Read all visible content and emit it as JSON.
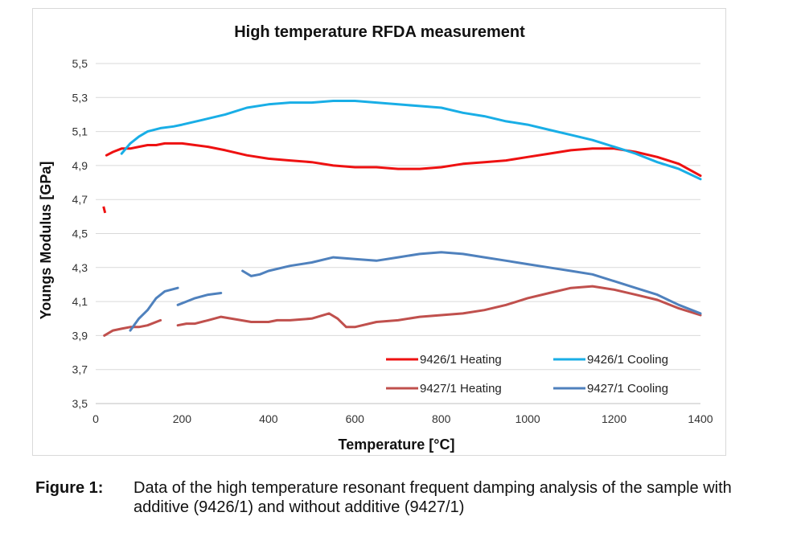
{
  "figure": {
    "label": "Figure 1:",
    "caption": "Data of the high temperature resonant frequent damping analysis of the sample with additive (9426/1) and without additive (9427/1)"
  },
  "chart_data": {
    "type": "line",
    "title": "High temperature RFDA measurement",
    "xlabel": "Temperature [°C]",
    "ylabel": "Youngs Modulus [GPa]",
    "xlim": [
      0,
      1400
    ],
    "ylim": [
      3.5,
      5.5
    ],
    "xticks": [
      0,
      200,
      400,
      600,
      800,
      1000,
      1200,
      1400
    ],
    "xtick_labels": [
      "0",
      "200",
      "400",
      "600",
      "800",
      "1000",
      "1200",
      "1400"
    ],
    "yticks": [
      3.5,
      3.7,
      3.9,
      4.1,
      4.3,
      4.5,
      4.7,
      4.9,
      5.1,
      5.3,
      5.5
    ],
    "ytick_labels": [
      "3,5",
      "3,7",
      "3,9",
      "4,1",
      "4,3",
      "4,5",
      "4,7",
      "4,9",
      "5,1",
      "5,3",
      "5,5"
    ],
    "grid": "horizontal",
    "legend_position": "bottom-right",
    "series": [
      {
        "name": "9426/1 Heating",
        "color": "#ee1111",
        "x": [
          20,
          22,
          25,
          40,
          60,
          80,
          100,
          120,
          140,
          160,
          180,
          200,
          230,
          260,
          300,
          350,
          400,
          450,
          500,
          550,
          600,
          650,
          700,
          750,
          800,
          850,
          900,
          950,
          1000,
          1050,
          1100,
          1150,
          1200,
          1250,
          1300,
          1350,
          1400
        ],
        "y": [
          4.64,
          null,
          4.96,
          4.98,
          5.0,
          5.0,
          5.01,
          5.02,
          5.02,
          5.03,
          5.03,
          5.03,
          5.02,
          5.01,
          4.99,
          4.96,
          4.94,
          4.93,
          4.92,
          4.9,
          4.89,
          4.89,
          4.88,
          4.88,
          4.89,
          4.91,
          4.92,
          4.93,
          4.95,
          4.97,
          4.99,
          5.0,
          5.0,
          4.98,
          4.95,
          4.91,
          4.84
        ]
      },
      {
        "name": "9426/1 Cooling",
        "color": "#19aee6",
        "x": [
          60,
          80,
          100,
          120,
          150,
          180,
          200,
          250,
          300,
          350,
          400,
          450,
          500,
          550,
          600,
          650,
          700,
          750,
          800,
          850,
          900,
          950,
          1000,
          1050,
          1100,
          1150,
          1200,
          1250,
          1300,
          1350,
          1400
        ],
        "y": [
          4.97,
          5.03,
          5.07,
          5.1,
          5.12,
          5.13,
          5.14,
          5.17,
          5.2,
          5.24,
          5.26,
          5.27,
          5.27,
          5.28,
          5.28,
          5.27,
          5.26,
          5.25,
          5.24,
          5.21,
          5.19,
          5.16,
          5.14,
          5.11,
          5.08,
          5.05,
          5.01,
          4.97,
          4.92,
          4.88,
          4.82
        ]
      },
      {
        "name": "9427/1 Heating",
        "color": "#c0504d",
        "x": [
          20,
          40,
          60,
          80,
          100,
          120,
          150,
          160,
          190,
          210,
          230,
          260,
          290,
          360,
          380,
          400,
          420,
          450,
          500,
          540,
          560,
          580,
          600,
          650,
          700,
          750,
          800,
          850,
          900,
          950,
          1000,
          1050,
          1100,
          1150,
          1200,
          1250,
          1300,
          1350,
          1400
        ],
        "y": [
          3.9,
          3.93,
          3.94,
          3.95,
          3.95,
          3.96,
          3.99,
          null,
          3.96,
          3.97,
          3.97,
          3.99,
          4.01,
          3.98,
          3.98,
          3.98,
          3.99,
          3.99,
          4.0,
          4.03,
          4.0,
          3.95,
          3.95,
          3.98,
          3.99,
          4.01,
          4.02,
          4.03,
          4.05,
          4.08,
          4.12,
          4.15,
          4.18,
          4.19,
          4.17,
          4.14,
          4.11,
          4.06,
          4.02
        ]
      },
      {
        "name": "9427/1 Cooling",
        "color": "#4f81bd",
        "x": [
          80,
          100,
          120,
          140,
          160,
          190,
          null,
          190,
          210,
          230,
          260,
          290,
          320,
          340,
          360,
          380,
          400,
          450,
          500,
          550,
          600,
          650,
          700,
          750,
          800,
          850,
          900,
          950,
          1000,
          1050,
          1100,
          1150,
          1200,
          1250,
          1300,
          1350,
          1400
        ],
        "y": [
          3.93,
          4.0,
          4.05,
          4.12,
          4.16,
          4.18,
          null,
          4.08,
          4.1,
          4.12,
          4.14,
          4.15,
          null,
          4.28,
          4.25,
          4.26,
          4.28,
          4.31,
          4.33,
          4.36,
          4.35,
          4.34,
          4.36,
          4.38,
          4.39,
          4.38,
          4.36,
          4.34,
          4.32,
          4.3,
          4.28,
          4.26,
          4.22,
          4.18,
          4.14,
          4.08,
          4.03
        ]
      }
    ]
  }
}
